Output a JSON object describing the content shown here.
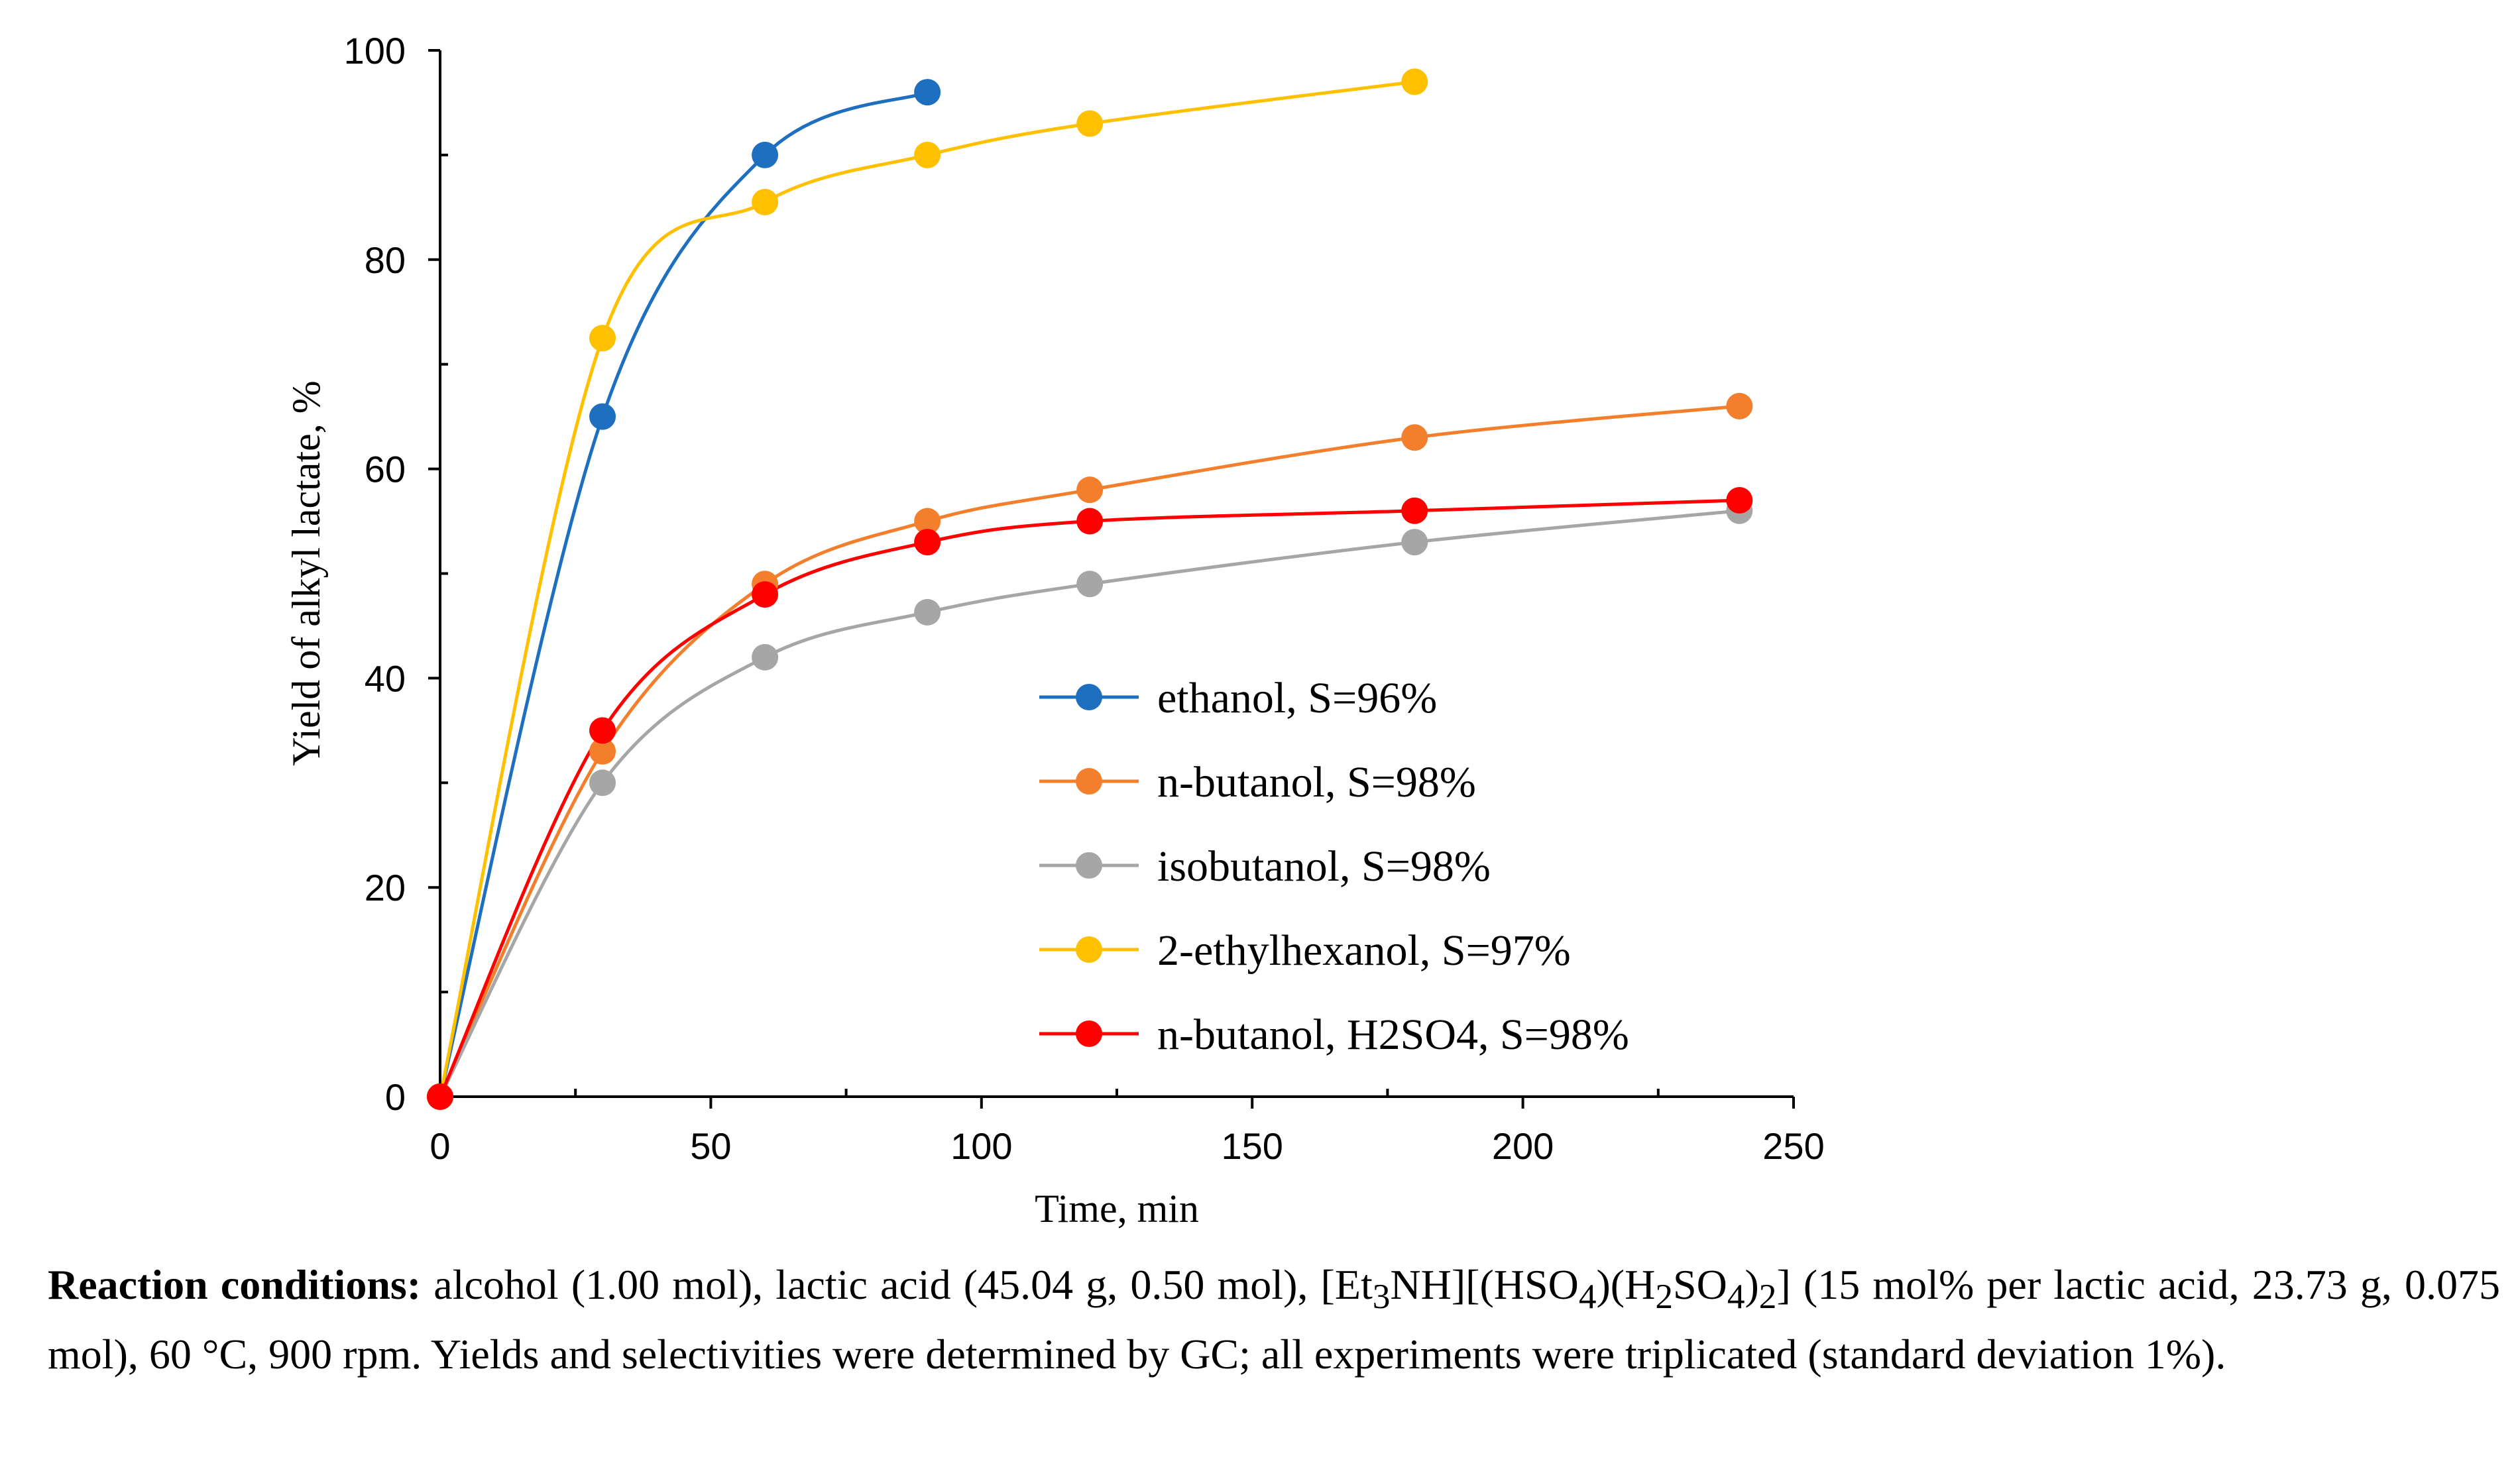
{
  "chart_data": {
    "type": "line",
    "title": "",
    "xlabel": "Time, min",
    "ylabel": "Yield of alkyl lactate, %",
    "xlim": [
      0,
      250
    ],
    "ylim": [
      0,
      100
    ],
    "xticks": [
      0,
      50,
      100,
      150,
      200,
      250
    ],
    "yticks": [
      0,
      20,
      40,
      60,
      80,
      100
    ],
    "grid": false,
    "legend_position": "center-right",
    "series": [
      {
        "name": "ethanol, S=96%",
        "color": "#1f6fc1",
        "x": [
          0,
          30,
          60,
          90
        ],
        "y": [
          0,
          65,
          90,
          96
        ]
      },
      {
        "name": "n-butanol, S=98%",
        "color": "#f37f2c",
        "x": [
          0,
          30,
          60,
          90,
          120,
          180,
          240
        ],
        "y": [
          0,
          33,
          49,
          55,
          58,
          63,
          66
        ]
      },
      {
        "name": "isobutanol, S=98%",
        "color": "#a6a6a6",
        "x": [
          0,
          30,
          60,
          90,
          120,
          180,
          240
        ],
        "y": [
          0,
          30,
          42,
          46.3,
          49,
          53,
          56
        ]
      },
      {
        "name": "2-ethylhexanol, S=97%",
        "color": "#ffc000",
        "x": [
          0,
          30,
          60,
          90,
          120,
          180
        ],
        "y": [
          0,
          72.5,
          85.5,
          90,
          93,
          97
        ]
      },
      {
        "name": "n-butanol, H2SO4, S=98%",
        "color": "#ff0000",
        "x": [
          0,
          30,
          60,
          90,
          120,
          180,
          240
        ],
        "y": [
          0,
          35,
          48,
          53,
          55,
          56,
          57
        ]
      }
    ]
  },
  "caption": {
    "bold_label": "Reaction conditions:",
    "text_a": " alcohol (1.00 mol), lactic acid (45.04 g, 0.50 mol), [Et",
    "sub_1": "3",
    "text_b": "NH][(HSO",
    "sub_2": "4",
    "text_c": ")(H",
    "sub_3": "2",
    "text_d": "SO",
    "sub_4": "4",
    "text_e": ")",
    "sub_5": "2",
    "text_f": "] (15 mol% per lactic acid, 23.73 g, 0.075 mol), 60 °C, 900 rpm. Yields and selectivities were determined by GC; all experiments were triplicated (standard deviation 1%)."
  }
}
